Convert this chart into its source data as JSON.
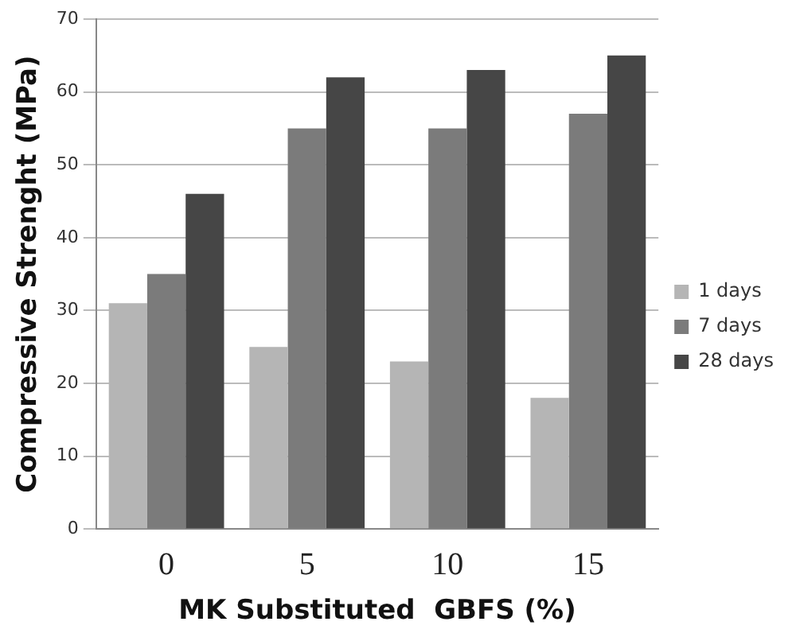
{
  "chart_data": {
    "type": "bar",
    "xlabel": "MK Substituted  GBFS (%)",
    "ylabel": "Compressive Strenght (MPa)",
    "categories": [
      "0",
      "5",
      "10",
      "15"
    ],
    "series": [
      {
        "name": "1 days",
        "color": "#b5b5b5",
        "values": [
          31,
          25,
          23,
          18
        ]
      },
      {
        "name": "7 days",
        "color": "#7b7b7b",
        "values": [
          35,
          55,
          55,
          57
        ]
      },
      {
        "name": "28 days",
        "color": "#464646",
        "values": [
          46,
          62,
          63,
          65
        ]
      }
    ],
    "ylim": [
      0,
      70
    ],
    "yticks": [
      0,
      10,
      20,
      30,
      40,
      50,
      60,
      70
    ],
    "grid": "y",
    "legend": "right"
  }
}
